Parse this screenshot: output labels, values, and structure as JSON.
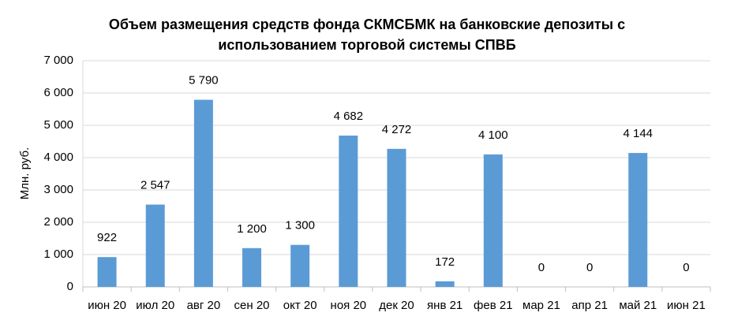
{
  "chart_data": {
    "type": "bar",
    "title": [
      "Объем размещения средств фонда СКМСБМК на банковские депозиты с",
      "использованием торговой системы СПВБ"
    ],
    "y_label": "Млн. руб.",
    "categories": [
      "июн 20",
      "июл 20",
      "авг 20",
      "сен 20",
      "окт 20",
      "ноя 20",
      "дек 20",
      "янв 21",
      "фев 21",
      "мар 21",
      "апр 21",
      "май 21",
      "июн 21"
    ],
    "values": [
      922,
      2547,
      5790,
      1200,
      1300,
      4682,
      4272,
      172,
      4100,
      0,
      0,
      4144,
      0
    ],
    "value_labels": [
      "922",
      "2 547",
      "5 790",
      "1 200",
      "1 300",
      "4 682",
      "4 272",
      "172",
      "4 100",
      "0",
      "0",
      "4 144",
      "0"
    ],
    "color": "#5b9bd5",
    "ylim": [
      0,
      7000
    ],
    "yticks": [
      0,
      {
        "value": 1000,
        "label": "1 000"
      },
      {
        "value": 2000,
        "label": "2 000"
      },
      {
        "value": 3000,
        "label": "3 000"
      },
      {
        "value": 4000,
        "label": "4 000"
      },
      {
        "value": 5000,
        "label": "5 000"
      },
      {
        "value": 6000,
        "label": "6 000"
      },
      {
        "value": 7000,
        "label": "7 000"
      }
    ],
    "grid": true
  }
}
